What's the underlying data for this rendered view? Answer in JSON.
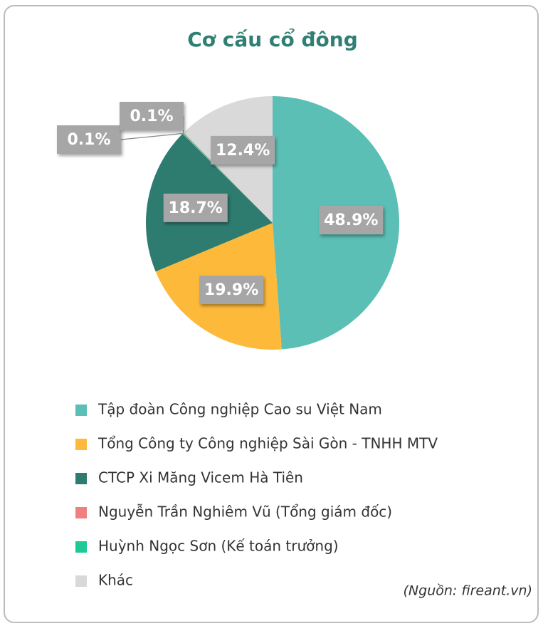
{
  "chart_data": {
    "type": "pie",
    "title": "Cơ cấu cổ đông",
    "categories": [
      "Tập đoàn Công nghiệp Cao su Việt Nam",
      "Tổng Công ty Công nghiệp Sài Gòn - TNHH MTV",
      "CTCP Xi Măng Vicem Hà Tiên",
      "Nguyễn Trần Nghiêm Vũ (Tổng giám đốc)",
      "Huỳnh Ngọc Sơn (Kế toán trưởng)",
      "Khác"
    ],
    "values": [
      48.9,
      19.9,
      18.7,
      0.1,
      0.1,
      12.4
    ],
    "value_labels": [
      "48.9%",
      "19.9%",
      "18.7%",
      "0.1%",
      "0.1%",
      "12.4%"
    ],
    "colors": [
      "#5bbfb5",
      "#fdb93a",
      "#2e7b6f",
      "#f08080",
      "#1ec997",
      "#d9d9d9"
    ],
    "legend": "bottom",
    "source": "(Nguồn: fireant.vn)"
  }
}
